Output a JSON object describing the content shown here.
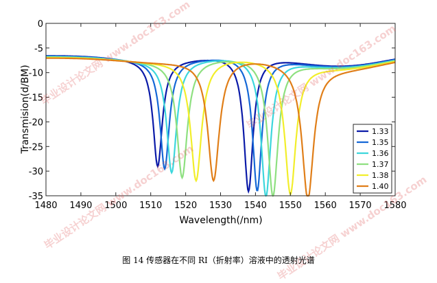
{
  "chart_data": {
    "type": "line",
    "xlabel": "Wavelength(/nm)",
    "ylabel": "Transmision(d/BM)",
    "xlim": [
      1480,
      1580
    ],
    "ylim": [
      -35,
      0
    ],
    "xticks": [
      "1480",
      "1490",
      "1500",
      "1510",
      "1520",
      "1530",
      "1540",
      "1550",
      "1560",
      "1570",
      "1580"
    ],
    "yticks": [
      "0",
      "-5",
      "-10",
      "-15",
      "-20",
      "-25",
      "-30",
      "-35"
    ],
    "legend_position": "bottom-right",
    "series": [
      {
        "name": "1.33",
        "color": "#0a1aa8",
        "baseline": -6.5,
        "dips": [
          [
            1512,
            -28.2,
            1.6,
            9
          ],
          [
            1538,
            -34.0,
            1.6,
            9
          ]
        ]
      },
      {
        "name": "1.35",
        "color": "#1467d6",
        "baseline": -6.6,
        "dips": [
          [
            1514,
            -28.7,
            1.6,
            9
          ],
          [
            1540.5,
            -33.8,
            1.6,
            9
          ]
        ]
      },
      {
        "name": "1.36",
        "color": "#3cd6dc",
        "baseline": -6.7,
        "dips": [
          [
            1516,
            -29.5,
            1.7,
            9
          ],
          [
            1543,
            -34.8,
            1.7,
            9
          ]
        ]
      },
      {
        "name": "1.37",
        "color": "#8ee080",
        "baseline": -6.8,
        "dips": [
          [
            1519,
            -30.6,
            1.8,
            10
          ],
          [
            1545,
            -34.5,
            1.8,
            10
          ]
        ]
      },
      {
        "name": "1.38",
        "color": "#f2ee2a",
        "baseline": -6.9,
        "dips": [
          [
            1523,
            -31.4,
            1.9,
            10
          ],
          [
            1550,
            -33.6,
            1.9,
            10
          ]
        ]
      },
      {
        "name": "1.40",
        "color": "#e07e18",
        "baseline": -7.0,
        "dips": [
          [
            1528,
            -31.6,
            2.0,
            10
          ],
          [
            1555,
            -34.0,
            2.0,
            10
          ]
        ]
      }
    ]
  },
  "caption": "图 14 传感器在不同 RI（折射率）溶液中的透射光谱",
  "watermark": "毕业设计论文网  www.doc163.com"
}
